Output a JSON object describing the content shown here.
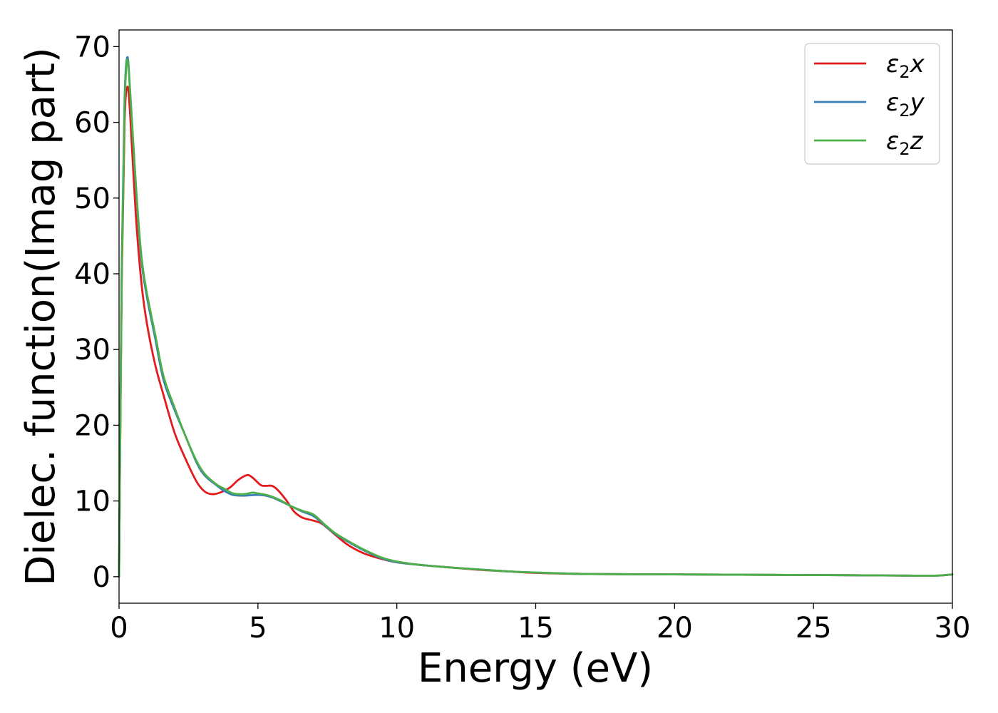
{
  "chart_data": {
    "type": "line",
    "title": "",
    "xlabel": "Energy (eV)",
    "ylabel": "Dielec. function(Imag part)",
    "xlim": [
      0,
      30
    ],
    "ylim": [
      -3.5,
      72.2
    ],
    "x_ticks": [
      0,
      5,
      10,
      15,
      20,
      25,
      30
    ],
    "y_ticks": [
      0,
      10,
      20,
      30,
      40,
      50,
      60,
      70
    ],
    "grid": false,
    "legend_position": "top-right",
    "series": [
      {
        "name": "ε2x",
        "legend_main": "ε",
        "legend_sub": "2",
        "legend_tail": "x",
        "color": "#e41a1c",
        "points": [
          [
            0,
            0
          ],
          [
            0.1,
            40
          ],
          [
            0.2,
            60
          ],
          [
            0.3,
            64.7
          ],
          [
            0.4,
            61
          ],
          [
            0.6,
            48
          ],
          [
            0.8,
            39
          ],
          [
            1.0,
            33.5
          ],
          [
            1.3,
            28
          ],
          [
            1.6,
            24
          ],
          [
            2.0,
            19
          ],
          [
            2.4,
            15.5
          ],
          [
            2.8,
            12.5
          ],
          [
            3.1,
            11.2
          ],
          [
            3.4,
            10.9
          ],
          [
            3.7,
            11.2
          ],
          [
            4.0,
            11.8
          ],
          [
            4.3,
            12.8
          ],
          [
            4.6,
            13.4
          ],
          [
            4.8,
            13.1
          ],
          [
            5.1,
            12.1
          ],
          [
            5.3,
            12.0
          ],
          [
            5.5,
            12.0
          ],
          [
            5.7,
            11.5
          ],
          [
            6.0,
            10.2
          ],
          [
            6.3,
            8.6
          ],
          [
            6.6,
            7.8
          ],
          [
            7.0,
            7.4
          ],
          [
            7.3,
            7.0
          ],
          [
            7.7,
            5.8
          ],
          [
            8.2,
            4.3
          ],
          [
            8.8,
            3.1
          ],
          [
            9.4,
            2.4
          ],
          [
            10.0,
            1.9
          ],
          [
            11,
            1.5
          ],
          [
            12,
            1.2
          ],
          [
            13,
            0.9
          ],
          [
            14,
            0.7
          ],
          [
            15,
            0.5
          ],
          [
            17,
            0.35
          ],
          [
            20,
            0.3
          ],
          [
            23,
            0.25
          ],
          [
            26,
            0.2
          ],
          [
            28,
            0.15
          ],
          [
            29,
            0.12
          ],
          [
            29.5,
            0.15
          ],
          [
            30,
            0.3
          ]
        ]
      },
      {
        "name": "ε2y",
        "legend_main": "ε",
        "legend_sub": "2",
        "legend_tail": "y",
        "color": "#377eb8",
        "points": [
          [
            0,
            0
          ],
          [
            0.1,
            42
          ],
          [
            0.2,
            63
          ],
          [
            0.3,
            68.6
          ],
          [
            0.4,
            64
          ],
          [
            0.6,
            52
          ],
          [
            0.8,
            42
          ],
          [
            1.0,
            37
          ],
          [
            1.3,
            31.5
          ],
          [
            1.6,
            26
          ],
          [
            2.0,
            22
          ],
          [
            2.4,
            18.5
          ],
          [
            2.8,
            15
          ],
          [
            3.1,
            13.3
          ],
          [
            3.5,
            12.1
          ],
          [
            3.8,
            11.3
          ],
          [
            4.1,
            10.8
          ],
          [
            4.5,
            10.7
          ],
          [
            5.0,
            10.8
          ],
          [
            5.4,
            10.6
          ],
          [
            5.8,
            10.0
          ],
          [
            6.2,
            9.3
          ],
          [
            6.6,
            8.6
          ],
          [
            7.0,
            8.0
          ],
          [
            7.4,
            6.8
          ],
          [
            7.8,
            5.6
          ],
          [
            8.3,
            4.5
          ],
          [
            8.8,
            3.5
          ],
          [
            9.4,
            2.5
          ],
          [
            10.0,
            1.9
          ],
          [
            11,
            1.5
          ],
          [
            12,
            1.2
          ],
          [
            13,
            0.95
          ],
          [
            14,
            0.7
          ],
          [
            15,
            0.55
          ],
          [
            17,
            0.35
          ],
          [
            20,
            0.3
          ],
          [
            23,
            0.25
          ],
          [
            26,
            0.2
          ],
          [
            28,
            0.15
          ],
          [
            29,
            0.12
          ],
          [
            29.5,
            0.15
          ],
          [
            30,
            0.3
          ]
        ]
      },
      {
        "name": "ε2z",
        "legend_main": "ε",
        "legend_sub": "2",
        "legend_tail": "z",
        "color": "#4daf4a",
        "points": [
          [
            0,
            0
          ],
          [
            0.1,
            41
          ],
          [
            0.2,
            62
          ],
          [
            0.3,
            68.3
          ],
          [
            0.4,
            64
          ],
          [
            0.6,
            52
          ],
          [
            0.8,
            42.5
          ],
          [
            1.0,
            37.5
          ],
          [
            1.3,
            32
          ],
          [
            1.6,
            26.5
          ],
          [
            2.0,
            22.3
          ],
          [
            2.4,
            18.5
          ],
          [
            2.8,
            15.2
          ],
          [
            3.1,
            13.5
          ],
          [
            3.5,
            12.2
          ],
          [
            3.8,
            11.6
          ],
          [
            4.1,
            11.0
          ],
          [
            4.5,
            10.9
          ],
          [
            4.8,
            11.1
          ],
          [
            5.0,
            11.0
          ],
          [
            5.4,
            10.7
          ],
          [
            5.8,
            10.1
          ],
          [
            6.2,
            9.3
          ],
          [
            6.6,
            8.7
          ],
          [
            7.0,
            8.2
          ],
          [
            7.4,
            6.9
          ],
          [
            7.8,
            5.7
          ],
          [
            8.3,
            4.6
          ],
          [
            8.8,
            3.6
          ],
          [
            9.4,
            2.6
          ],
          [
            10.0,
            2.0
          ],
          [
            11,
            1.5
          ],
          [
            12,
            1.2
          ],
          [
            13,
            0.95
          ],
          [
            14,
            0.7
          ],
          [
            15,
            0.55
          ],
          [
            17,
            0.35
          ],
          [
            20,
            0.3
          ],
          [
            23,
            0.25
          ],
          [
            26,
            0.2
          ],
          [
            28,
            0.15
          ],
          [
            29,
            0.12
          ],
          [
            29.5,
            0.15
          ],
          [
            30,
            0.3
          ]
        ]
      }
    ]
  }
}
